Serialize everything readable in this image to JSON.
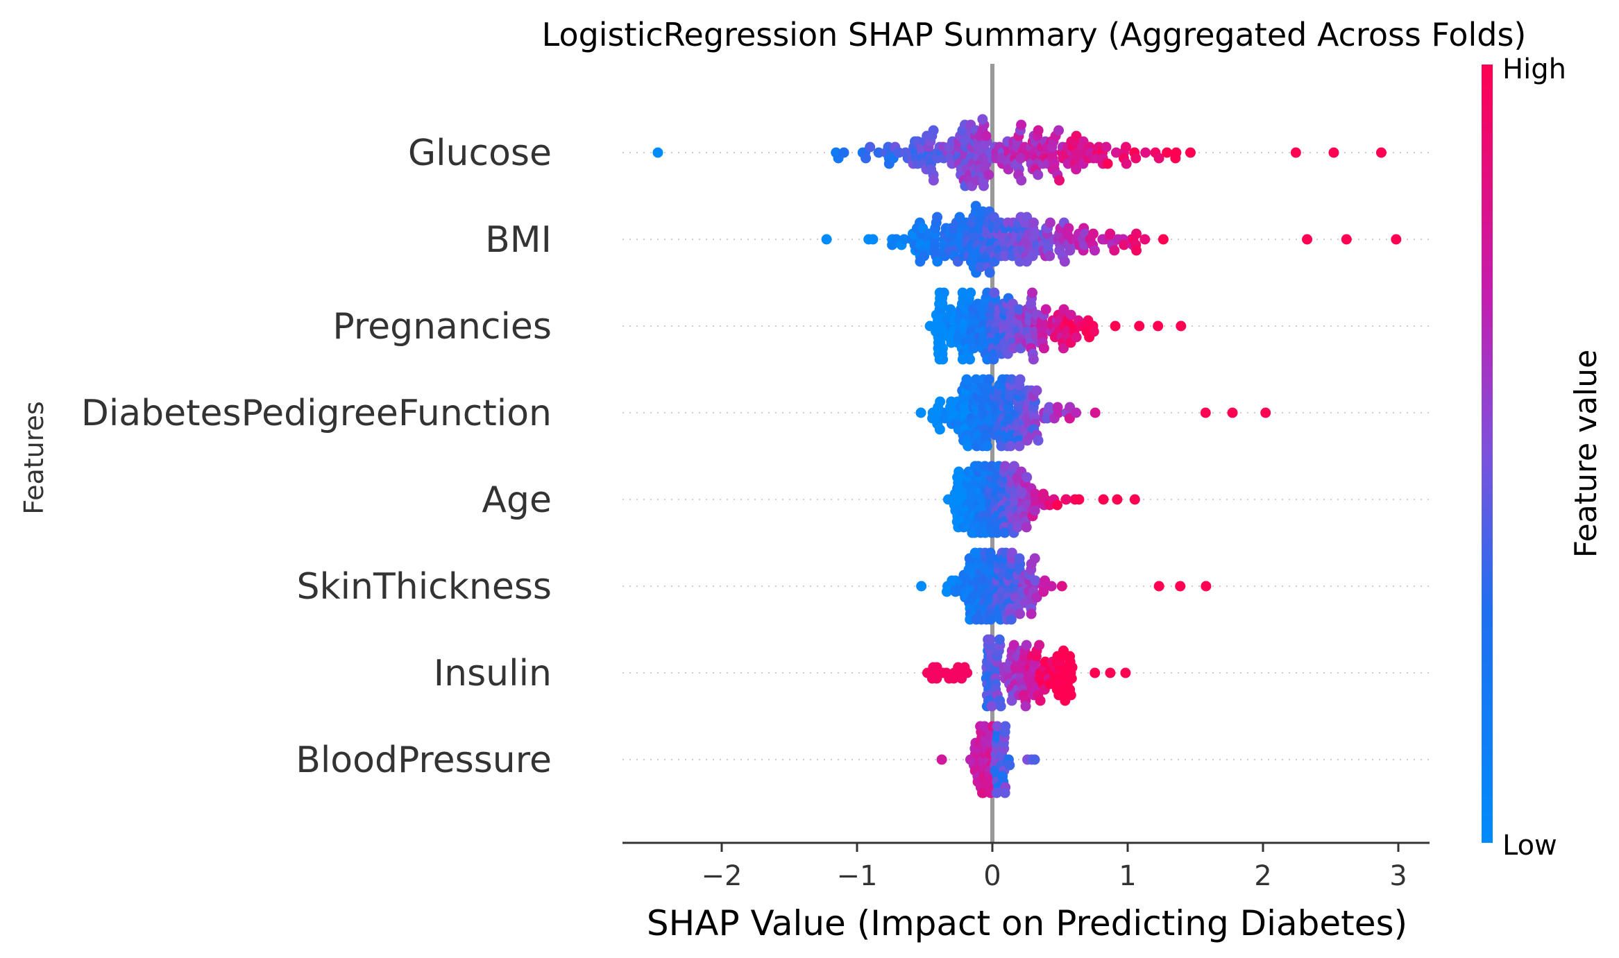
{
  "chart_data": {
    "type": "scatter",
    "subtype": "shap-beeswarm",
    "title": "LogisticRegression SHAP Summary (Aggregated Across Folds)",
    "xlabel": "SHAP Value (Impact on Predicting Diabetes)",
    "ylabel": "Features",
    "xlim": [
      -2.75,
      3.25
    ],
    "xticks": [
      {
        "value": -2,
        "label": "−2"
      },
      {
        "value": -1,
        "label": "−1"
      },
      {
        "value": 0,
        "label": "0"
      },
      {
        "value": 1,
        "label": "1"
      },
      {
        "value": 2,
        "label": "2"
      },
      {
        "value": 3,
        "label": "3"
      }
    ],
    "grid": false,
    "colorbar": {
      "label": "Feature value",
      "high_label": "High",
      "low_label": "Low",
      "low_color": "#008bfb",
      "high_color": "#ff0052"
    },
    "features": [
      {
        "name": "Glucose",
        "min": -2.48,
        "max": 2.87,
        "spread": 1.2
      },
      {
        "name": "BMI",
        "min": -1.22,
        "max": 2.98,
        "spread": 1.0
      },
      {
        "name": "Pregnancies",
        "min": -0.46,
        "max": 1.4,
        "spread": 0.75
      },
      {
        "name": "DiabetesPedigreeFunction",
        "min": -0.52,
        "max": 2.02,
        "spread": 0.55
      },
      {
        "name": "Age",
        "min": -0.32,
        "max": 1.05,
        "spread": 0.45
      },
      {
        "name": "SkinThickness",
        "min": -0.52,
        "max": 1.58,
        "spread": 0.38
      },
      {
        "name": "Insulin",
        "min": -0.47,
        "max": 0.98,
        "spread": 0.18
      },
      {
        "name": "BloodPressure",
        "min": -0.37,
        "max": 0.32,
        "spread": 0.1
      }
    ]
  }
}
